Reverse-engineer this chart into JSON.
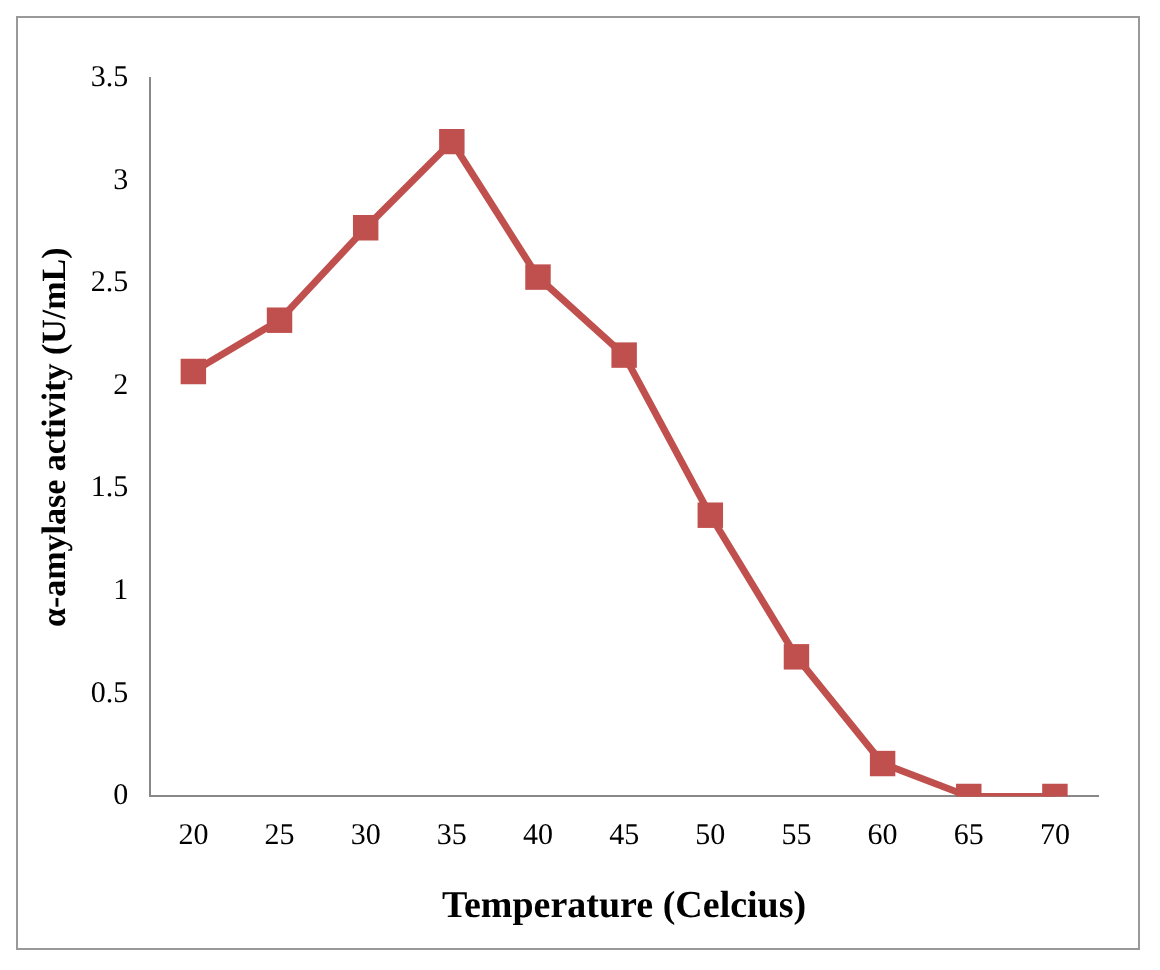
{
  "chart_data": {
    "type": "line",
    "xlabel": "Temperature (Celcius)",
    "ylabel": "α-amylase activity (U/mL)",
    "categories": [
      "20",
      "25",
      "30",
      "35",
      "40",
      "45",
      "50",
      "55",
      "60",
      "65",
      "70"
    ],
    "series": [
      {
        "color": "#c0504d",
        "values": [
          2.07,
          2.32,
          2.77,
          3.19,
          2.53,
          2.15,
          1.37,
          0.68,
          0.16,
          0,
          0
        ]
      }
    ],
    "ylim": [
      0,
      3.5
    ],
    "yticks": [
      0,
      0.5,
      1,
      1.5,
      2,
      2.5,
      3,
      3.5
    ],
    "grid": false,
    "legend": false,
    "marker": "square",
    "line_style": "solid"
  }
}
